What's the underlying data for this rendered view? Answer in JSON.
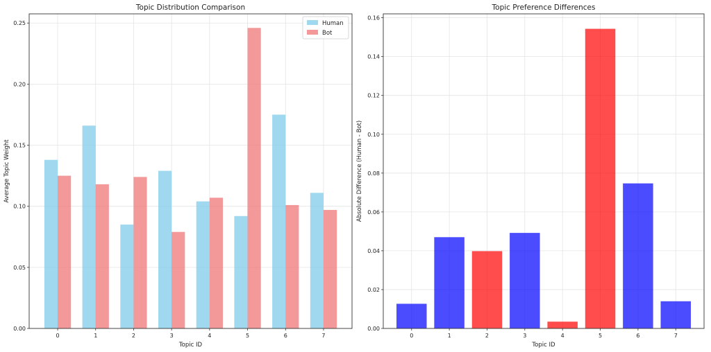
{
  "chart_data": [
    {
      "type": "bar",
      "title": "Topic Distribution Comparison",
      "xlabel": "Topic ID",
      "ylabel": "Average Topic Weight",
      "categories": [
        "0",
        "1",
        "2",
        "3",
        "4",
        "5",
        "6",
        "7"
      ],
      "series": [
        {
          "name": "Human",
          "color": "#87ceeb",
          "values": [
            0.138,
            0.166,
            0.085,
            0.129,
            0.104,
            0.092,
            0.175,
            0.111
          ]
        },
        {
          "name": "Bot",
          "color": "#f08080",
          "values": [
            0.125,
            0.118,
            0.124,
            0.079,
            0.107,
            0.246,
            0.101,
            0.097
          ]
        }
      ],
      "ylim": [
        0,
        0.2575
      ],
      "yticks": [
        "0.00",
        "0.05",
        "0.10",
        "0.15",
        "0.20",
        "0.25"
      ],
      "grid": true,
      "legend_position": "top-right"
    },
    {
      "type": "bar",
      "title": "Topic Preference Differences",
      "xlabel": "Topic ID",
      "ylabel": "Absolute Difference (Human - Bot)",
      "categories": [
        "0",
        "1",
        "2",
        "3",
        "4",
        "5",
        "6",
        "7"
      ],
      "values": [
        0.0127,
        0.047,
        0.0398,
        0.0492,
        0.0035,
        0.1543,
        0.0747,
        0.014
      ],
      "colors": [
        "#0000ff",
        "#0000ff",
        "#ff0000",
        "#0000ff",
        "#ff0000",
        "#ff0000",
        "#0000ff",
        "#0000ff"
      ],
      "ylim": [
        0,
        0.162
      ],
      "yticks": [
        "0.00",
        "0.02",
        "0.04",
        "0.06",
        "0.08",
        "0.10",
        "0.12",
        "0.14",
        "0.16"
      ],
      "grid": true
    }
  ]
}
